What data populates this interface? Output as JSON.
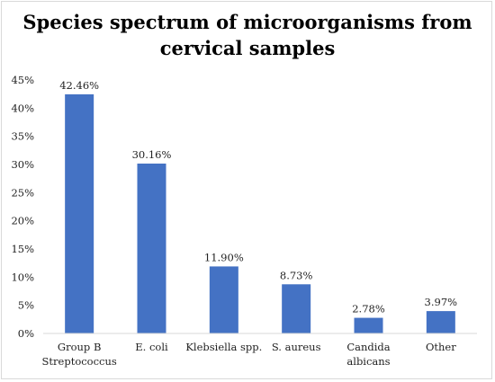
{
  "chart_data": {
    "type": "bar",
    "title_lines": [
      "Species spectrum of microorganisms from",
      "cervical samples"
    ],
    "categories": [
      [
        "Group B",
        "Streptococcus"
      ],
      [
        "E. coli"
      ],
      [
        "Klebsiella spp."
      ],
      [
        "S. aureus"
      ],
      [
        "Candida",
        "albicans"
      ],
      [
        "Other"
      ]
    ],
    "values": [
      42.46,
      30.16,
      11.9,
      8.73,
      2.78,
      3.97
    ],
    "data_labels": [
      "42.46%",
      "30.16%",
      "11.90%",
      "8.73%",
      "2.78%",
      "3.97%"
    ],
    "yticks": [
      0,
      5,
      10,
      15,
      20,
      25,
      30,
      35,
      40,
      45
    ],
    "ytick_labels": [
      "0%",
      "5%",
      "10%",
      "15%",
      "20%",
      "25%",
      "30%",
      "35%",
      "40%",
      "45%"
    ],
    "ylim": [
      0,
      45
    ],
    "xlabel": "",
    "ylabel": "",
    "grid": false,
    "legend": "none",
    "bar_color": "#4472c4"
  }
}
